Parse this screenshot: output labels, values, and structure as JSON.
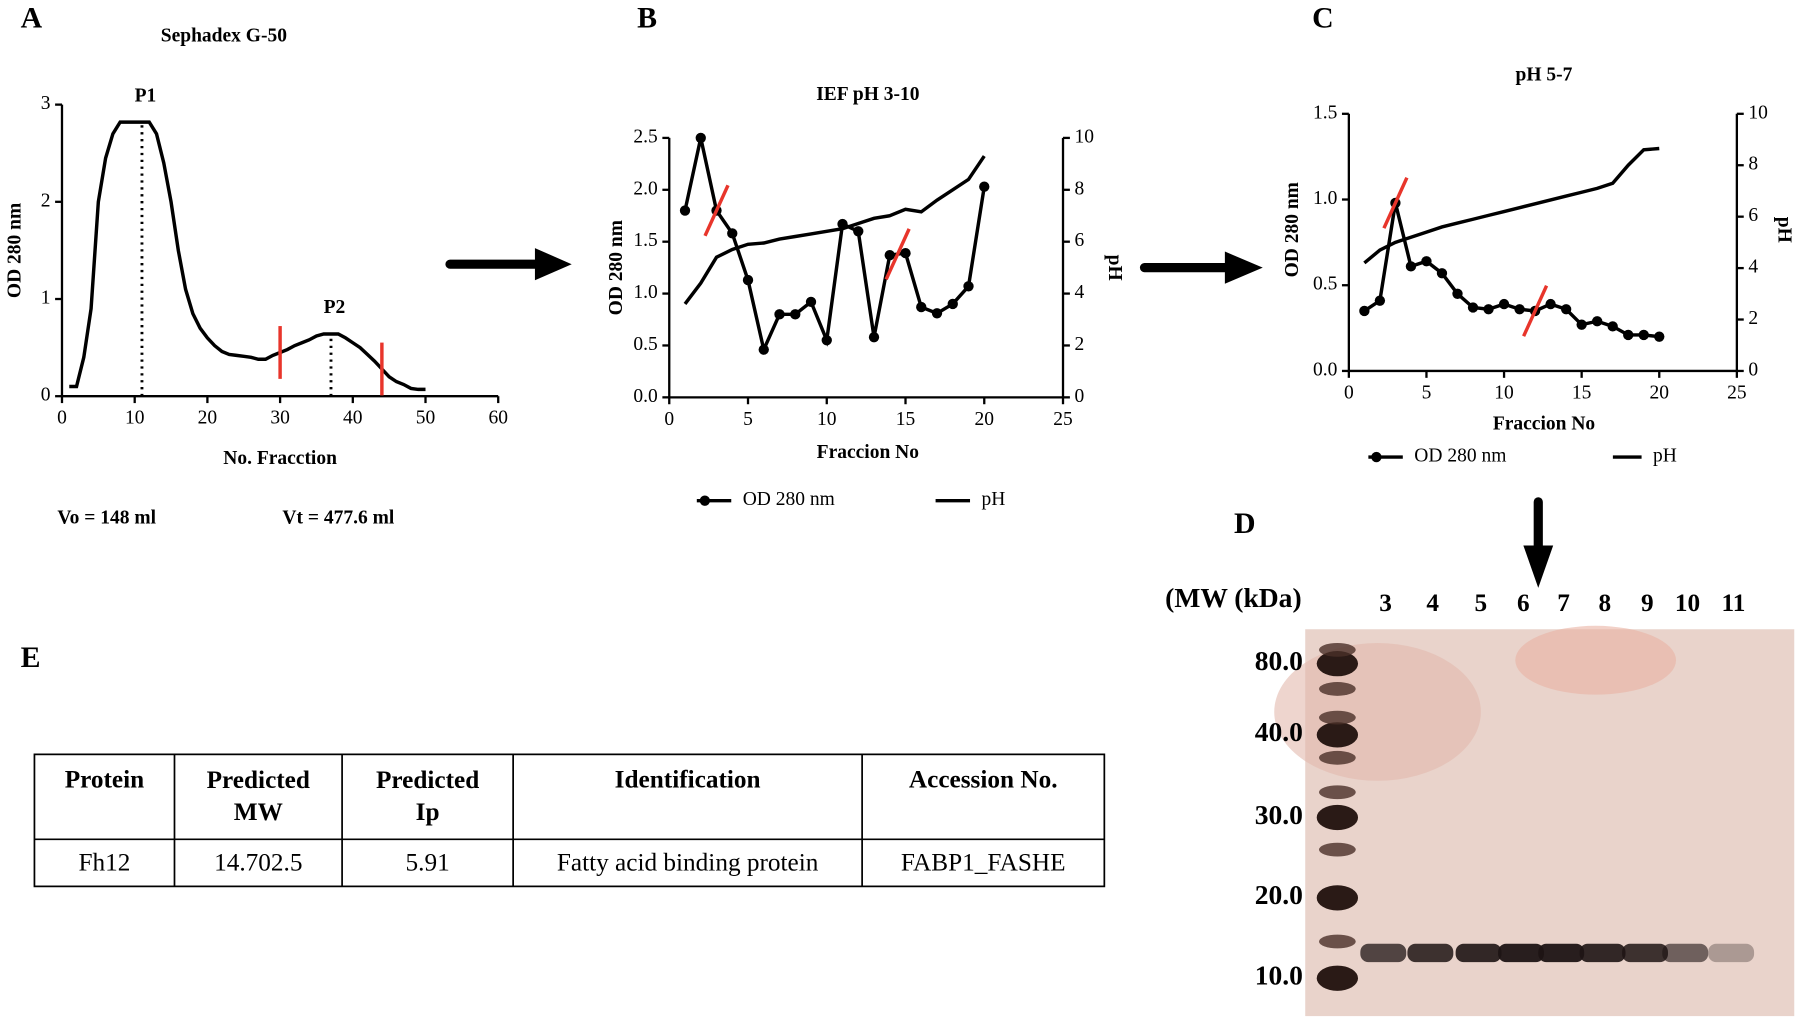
{
  "chart_data": [
    {
      "type": "line",
      "panel": "A",
      "title": "Sephadex G-50",
      "xlabel": "No. Fracction",
      "ylabel": "OD 280 nm",
      "xlim": [
        0,
        60
      ],
      "xticks": [
        0,
        10,
        20,
        30,
        40,
        50,
        60
      ],
      "ylim": [
        0,
        3
      ],
      "yticks": [
        0,
        1,
        2,
        3
      ],
      "x": [
        1,
        2,
        3,
        4,
        5,
        6,
        7,
        8,
        9,
        10,
        11,
        12,
        13,
        14,
        15,
        16,
        17,
        18,
        19,
        20,
        21,
        22,
        23,
        24,
        25,
        26,
        27,
        28,
        29,
        30,
        31,
        32,
        33,
        34,
        35,
        36,
        37,
        38,
        39,
        40,
        41,
        42,
        43,
        44,
        45,
        46,
        47,
        48,
        49,
        50
      ],
      "values": [
        0.1,
        0.1,
        0.4,
        0.9,
        2.0,
        2.45,
        2.7,
        2.82,
        2.82,
        2.82,
        2.82,
        2.82,
        2.7,
        2.4,
        2.0,
        1.5,
        1.1,
        0.85,
        0.7,
        0.6,
        0.52,
        0.46,
        0.43,
        0.42,
        0.41,
        0.4,
        0.38,
        0.38,
        0.42,
        0.45,
        0.48,
        0.52,
        0.55,
        0.58,
        0.62,
        0.64,
        0.64,
        0.64,
        0.6,
        0.55,
        0.5,
        0.43,
        0.36,
        0.28,
        0.2,
        0.15,
        0.12,
        0.08,
        0.07,
        0.07
      ],
      "color": "#000000",
      "cut_color": "#e8352b",
      "peaks": [
        {
          "label": "P1",
          "x": 11
        },
        {
          "label": "P2",
          "x": 37
        }
      ],
      "cut_marks": [
        30,
        44
      ],
      "notes": [
        "Vo = 148 ml",
        "Vt = 477.6 ml"
      ]
    },
    {
      "type": "line",
      "panel": "B",
      "title": "IEF pH 3-10",
      "xlabel": "Fraccion No",
      "ylabel": "OD 280 nm",
      "y2label": "pH",
      "xlim": [
        0,
        25
      ],
      "xticks": [
        0,
        5,
        10,
        15,
        20,
        25
      ],
      "ylim": [
        0,
        2.5
      ],
      "yticks": [
        {
          "value": 0,
          "label": "0.0"
        },
        0.5,
        {
          "value": 1,
          "label": "1.0"
        },
        1.5,
        {
          "value": 2,
          "label": "2.0"
        },
        2.5
      ],
      "y2lim": [
        0,
        10
      ],
      "y2ticks": [
        0,
        2,
        4,
        6,
        8,
        10
      ],
      "x": [
        1,
        2,
        3,
        4,
        5,
        6,
        7,
        8,
        9,
        10,
        11,
        12,
        13,
        14,
        15,
        16,
        17,
        18,
        19,
        20
      ],
      "series": [
        {
          "name": "OD 280 nm",
          "color": "#000000",
          "marker": "circle",
          "values": [
            1.8,
            2.5,
            1.8,
            1.58,
            1.13,
            0.46,
            0.8,
            0.8,
            0.92,
            0.55,
            1.67,
            1.6,
            0.58,
            1.37,
            1.39,
            0.87,
            0.81,
            0.9,
            1.07,
            2.03
          ]
        },
        {
          "name": "pH",
          "color": "#000000",
          "axis": "y2",
          "values": [
            3.6,
            4.4,
            5.4,
            5.7,
            5.9,
            5.95,
            6.1,
            6.2,
            6.3,
            6.4,
            6.5,
            6.7,
            6.9,
            7.0,
            7.25,
            7.15,
            7.6,
            8.0,
            8.4,
            9.3
          ]
        }
      ],
      "cut_color": "#e8352b",
      "cut_marks": [
        3,
        14.5
      ]
    },
    {
      "type": "line",
      "panel": "C",
      "title": "pH 5-7",
      "xlabel": "Fraccion No",
      "ylabel": "OD 280 nm",
      "y2label": "pH",
      "xlim": [
        0,
        25
      ],
      "xticks": [
        0,
        5,
        10,
        15,
        20,
        25
      ],
      "ylim": [
        0,
        1.5
      ],
      "yticks": [
        {
          "value": 0,
          "label": "0.0"
        },
        0.5,
        {
          "value": 1,
          "label": "1.0"
        },
        1.5
      ],
      "y2lim": [
        0,
        10
      ],
      "y2ticks": [
        0,
        2,
        4,
        6,
        8,
        10
      ],
      "x": [
        1,
        2,
        3,
        4,
        5,
        6,
        7,
        8,
        9,
        10,
        11,
        12,
        13,
        14,
        15,
        16,
        17,
        18,
        19,
        20
      ],
      "series": [
        {
          "name": "OD 280 nm",
          "color": "#000000",
          "marker": "circle",
          "values": [
            0.35,
            0.41,
            0.98,
            0.61,
            0.64,
            0.57,
            0.45,
            0.37,
            0.36,
            0.39,
            0.36,
            0.35,
            0.39,
            0.36,
            0.27,
            0.29,
            0.26,
            0.21,
            0.21,
            0.2
          ]
        },
        {
          "name": "pH",
          "color": "#000000",
          "axis": "y2",
          "values": [
            4.2,
            4.7,
            5.0,
            5.2,
            5.4,
            5.6,
            5.75,
            5.9,
            6.05,
            6.2,
            6.35,
            6.5,
            6.65,
            6.8,
            6.95,
            7.1,
            7.3,
            8.0,
            8.6,
            8.65
          ]
        }
      ],
      "cut_color": "#e8352b",
      "cut_marks": [
        3,
        12
      ]
    }
  ],
  "gel": {
    "panel": "D",
    "header": "(MW (kDa)",
    "lanes": [
      "3",
      "4",
      "5",
      "6",
      "7",
      "8",
      "9",
      "10",
      "11"
    ],
    "markers": [
      "80.0",
      "40.0",
      "30.0",
      "20.0",
      "10.0"
    ]
  },
  "table": {
    "panel": "E",
    "header": [
      "Protein",
      "Predicted MW",
      "Predicted Ip",
      "Identification",
      "Accession No."
    ],
    "rows": [
      [
        "Fh12",
        "14.702.5",
        "5.91",
        "Fatty acid binding protein",
        "FABP1_FASHE"
      ]
    ]
  }
}
